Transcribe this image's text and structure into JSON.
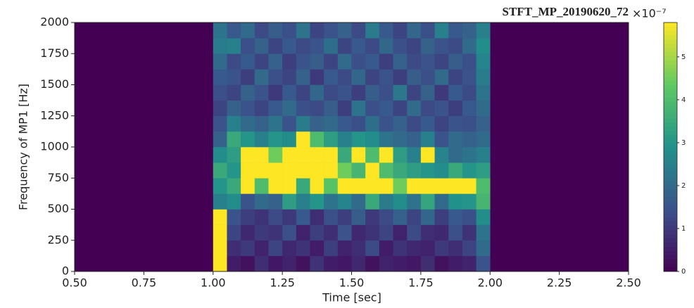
{
  "chart_data": {
    "type": "heatmap",
    "title": "STFT_MP_20190620_72",
    "x_label": "Time [sec]",
    "y_label": "Frequency of MP1 [Hz]",
    "xlim": [
      0.5,
      2.5
    ],
    "ylim": [
      0,
      2000
    ],
    "xticks": [
      {
        "value": 0.5,
        "label": "0.50"
      },
      0.75,
      {
        "value": 1,
        "label": "1.00"
      },
      1.25,
      {
        "value": 1.5,
        "label": "1.50"
      },
      1.75,
      {
        "value": 2,
        "label": "2.00"
      },
      2.25,
      {
        "value": 2.5,
        "label": "2.50"
      }
    ],
    "yticks": [
      0,
      250,
      500,
      750,
      1000,
      1250,
      1500,
      1750,
      2000
    ],
    "colormap": "viridis",
    "zlim": [
      0,
      5.8
    ],
    "zticks": [
      0,
      1,
      2,
      3,
      4,
      5
    ],
    "z_scale_label": "×10⁻⁷",
    "x": [
      1.025,
      1.075,
      1.125,
      1.175,
      1.225,
      1.275,
      1.325,
      1.375,
      1.425,
      1.475,
      1.525,
      1.575,
      1.625,
      1.675,
      1.725,
      1.775,
      1.825,
      1.875,
      1.925,
      1.975
    ],
    "y": [
      62.5,
      187.5,
      312.5,
      437.5,
      562.5,
      687.5,
      812.5,
      937.5,
      1062.5,
      1187.5,
      1312.5,
      1437.5,
      1562.5,
      1687.5,
      1812.5,
      1937.5
    ],
    "z": [
      [
        5.8,
        0.5,
        0.3,
        0.8,
        0.4,
        0.6,
        0.3,
        0.9,
        0.5,
        0.4,
        0.7,
        0.3,
        0.6,
        0.5,
        0.4,
        0.8,
        0.3,
        0.5,
        0.6,
        1.5
      ],
      [
        5.8,
        0.8,
        1.0,
        0.6,
        1.2,
        0.7,
        0.9,
        0.5,
        1.1,
        0.6,
        0.8,
        1.3,
        0.5,
        0.9,
        0.7,
        0.6,
        1.0,
        0.8,
        1.2,
        2.0
      ],
      [
        5.8,
        1.2,
        0.7,
        1.0,
        0.9,
        1.4,
        0.6,
        1.1,
        0.8,
        1.5,
        0.7,
        0.9,
        1.2,
        0.6,
        1.3,
        0.8,
        0.7,
        1.4,
        0.9,
        2.2
      ],
      [
        5.8,
        1.5,
        1.1,
        0.9,
        1.3,
        1.0,
        1.6,
        0.8,
        1.4,
        1.1,
        1.7,
        1.0,
        1.3,
        1.8,
        1.2,
        1.9,
        1.1,
        1.6,
        1.4,
        2.8
      ],
      [
        2.5,
        2.8,
        1.5,
        2.0,
        1.8,
        3.2,
        2.5,
        3.0,
        2.2,
        2.6,
        2.0,
        3.5,
        2.4,
        2.8,
        2.2,
        3.4,
        2.0,
        2.9,
        3.0,
        3.8
      ],
      [
        3.0,
        3.5,
        5.8,
        4.0,
        5.8,
        5.8,
        3.5,
        5.8,
        4.2,
        5.8,
        5.8,
        5.8,
        5.8,
        4.5,
        5.8,
        5.8,
        5.8,
        5.8,
        5.8,
        4.0
      ],
      [
        3.5,
        3.0,
        5.8,
        5.8,
        5.8,
        5.8,
        5.8,
        5.8,
        5.8,
        4.5,
        3.8,
        5.8,
        4.0,
        3.5,
        3.2,
        3.0,
        2.8,
        3.5,
        3.0,
        3.2
      ],
      [
        2.8,
        3.2,
        5.8,
        5.8,
        4.5,
        5.8,
        5.8,
        5.8,
        5.8,
        3.5,
        5.8,
        4.0,
        5.8,
        3.2,
        2.5,
        5.8,
        2.6,
        2.0,
        2.2,
        2.5
      ],
      [
        1.8,
        3.5,
        3.0,
        2.5,
        3.0,
        2.8,
        5.8,
        4.0,
        3.2,
        2.5,
        3.0,
        2.8,
        2.2,
        2.0,
        1.8,
        2.5,
        1.5,
        2.0,
        1.8,
        2.0
      ],
      [
        1.5,
        2.5,
        2.0,
        1.8,
        2.2,
        1.5,
        2.4,
        1.8,
        2.0,
        1.6,
        1.4,
        2.1,
        1.5,
        1.8,
        1.3,
        1.6,
        1.2,
        1.5,
        1.4,
        1.8
      ],
      [
        1.2,
        1.8,
        1.5,
        1.2,
        1.6,
        2.0,
        1.4,
        1.3,
        1.7,
        1.1,
        2.2,
        1.4,
        1.6,
        1.2,
        2.0,
        1.3,
        1.5,
        1.1,
        1.6,
        2.0
      ],
      [
        1.4,
        1.2,
        1.8,
        1.5,
        1.0,
        1.6,
        1.2,
        1.9,
        1.3,
        1.5,
        1.1,
        1.7,
        1.4,
        2.3,
        1.2,
        1.8,
        1.0,
        1.6,
        1.3,
        2.2
      ],
      [
        1.6,
        1.5,
        1.1,
        2.0,
        1.4,
        1.2,
        1.8,
        1.0,
        1.6,
        1.3,
        1.9,
        1.2,
        1.5,
        1.1,
        1.7,
        1.4,
        2.0,
        1.2,
        1.5,
        2.4
      ],
      [
        2.0,
        1.3,
        1.6,
        1.2,
        1.8,
        1.1,
        1.5,
        1.7,
        1.2,
        2.0,
        1.4,
        1.6,
        1.1,
        1.8,
        1.3,
        1.5,
        1.2,
        1.7,
        1.4,
        2.6
      ],
      [
        2.4,
        2.5,
        1.4,
        1.8,
        1.2,
        1.6,
        1.3,
        1.5,
        2.1,
        1.2,
        1.6,
        1.3,
        1.9,
        1.4,
        1.2,
        1.8,
        1.5,
        1.3,
        2.0,
        2.8
      ],
      [
        2.2,
        1.6,
        2.0,
        1.3,
        1.7,
        1.4,
        2.2,
        1.2,
        1.5,
        1.8,
        1.3,
        2.4,
        1.6,
        1.2,
        1.9,
        1.4,
        2.5,
        1.6,
        1.8,
        2.5
      ]
    ]
  }
}
